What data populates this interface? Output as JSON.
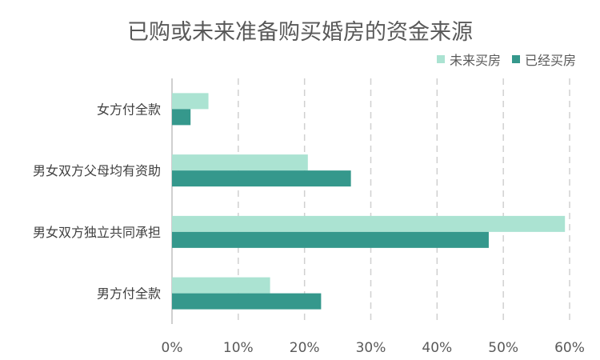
{
  "chart_data": {
    "type": "bar",
    "orientation": "horizontal",
    "title": "已购或未来准备购买婚房的资金来源",
    "categories": [
      "女方付全款",
      "男女双方父母均有资助",
      "男女双方独立共同承担",
      "男方付全款"
    ],
    "series": [
      {
        "name": "未来买房",
        "color": "#ABE3D2",
        "values": [
          5.5,
          20.5,
          59.3,
          14.8
        ]
      },
      {
        "name": "已经买房",
        "color": "#35988C",
        "values": [
          2.8,
          27.0,
          47.8,
          22.5
        ]
      }
    ],
    "xlim": [
      0,
      60
    ],
    "x_ticks": [
      "0%",
      "10%",
      "20%",
      "30%",
      "40%",
      "50%",
      "60%"
    ],
    "x_tick_values": [
      0,
      10,
      20,
      30,
      40,
      50,
      60
    ],
    "grid": "vertical-dashed",
    "legend_position": "top-right"
  }
}
